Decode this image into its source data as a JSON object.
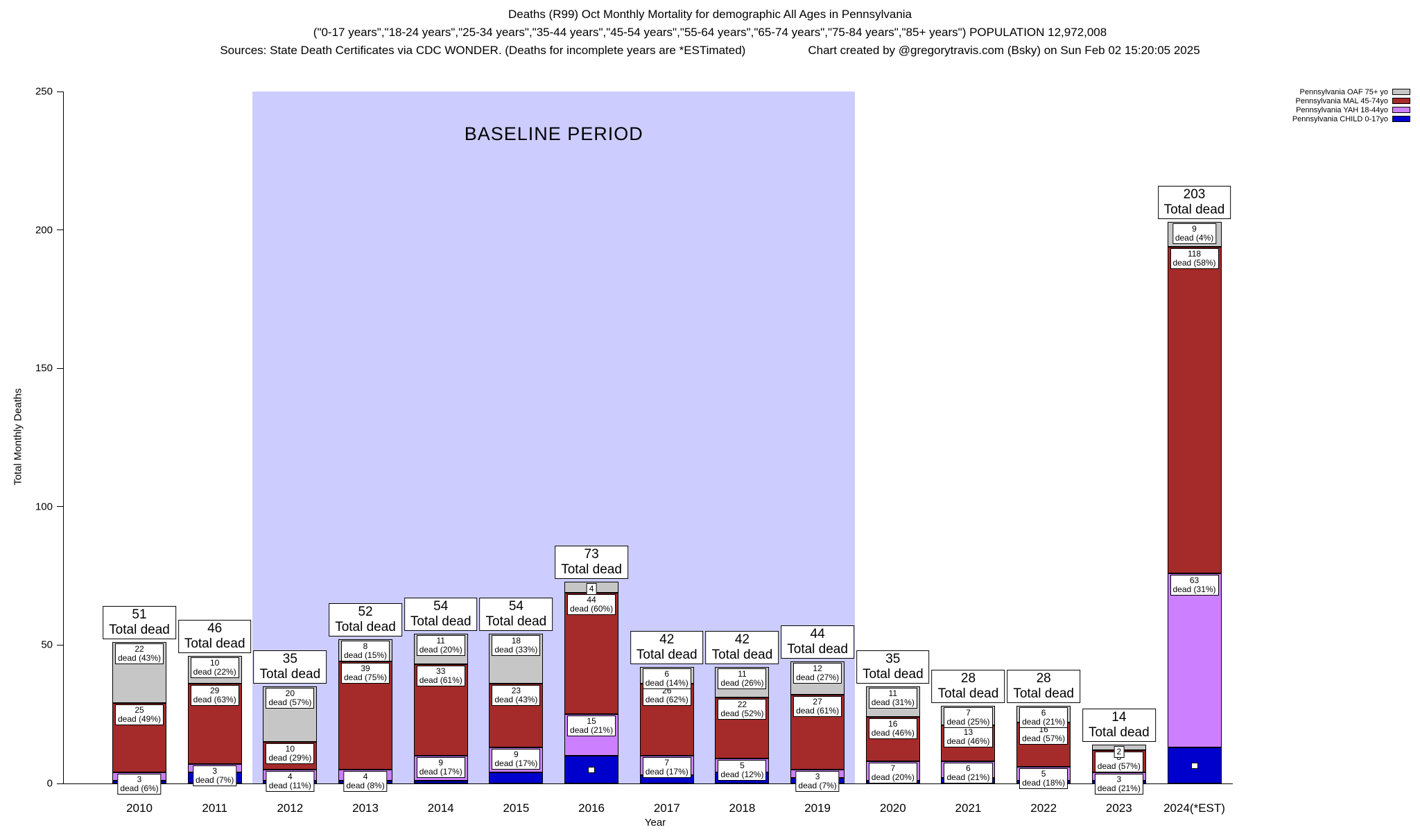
{
  "header": {
    "line1": "Deaths (R99) Oct Monthly Mortality for demographic All Ages in Pennsylvania",
    "line2": "(\"0-17 years\",\"18-24 years\",\"25-34 years\",\"35-44 years\",\"45-54 years\",\"55-64 years\",\"65-74 years\",\"75-84 years\",\"85+ years\") POPULATION 12,972,008",
    "line3_left": "Sources: State Death Certificates via CDC WONDER. (Deaths for incomplete years are *ESTimated)",
    "line3_right": "Chart created by @gregorytravis.com (Bsky) on Sun Feb 02 15:20:05 2025"
  },
  "legend": [
    {
      "label": "Pennsylvania OAF 75+ yo",
      "color": "#c6c6c6"
    },
    {
      "label": "Pennsylvania MAL 45-74yo",
      "color": "#a52a2a"
    },
    {
      "label": "Pennsylvania YAH 18-44yo",
      "color": "#cc80ff"
    },
    {
      "label": "Pennsylvania CHILD 0-17yo",
      "color": "#0000cd"
    }
  ],
  "axes": {
    "y_label": "Total Monthly Deaths",
    "x_label": "Year",
    "y_ticks": [
      0,
      50,
      100,
      150,
      200,
      250
    ],
    "y_max": 250
  },
  "baseline": {
    "label": "BASELINE PERIOD",
    "from": "2012",
    "to": "2019",
    "color": "#ccccff"
  },
  "chart_data": {
    "type": "bar",
    "stacked": true,
    "title": "Deaths (R99) Oct Monthly Mortality for demographic All Ages in Pennsylvania",
    "xlabel": "Year",
    "ylabel": "Total Monthly Deaths",
    "ylim": [
      0,
      250
    ],
    "grid": false,
    "legend_position": "top-right",
    "categories": [
      "2010",
      "2011",
      "2012",
      "2013",
      "2014",
      "2015",
      "2016",
      "2017",
      "2018",
      "2019",
      "2020",
      "2021",
      "2022",
      "2023",
      "2024(*EST)"
    ],
    "totals": [
      51,
      46,
      35,
      52,
      54,
      54,
      73,
      42,
      42,
      44,
      35,
      28,
      28,
      14,
      203
    ],
    "total_label_suffix": "Total dead",
    "dead_label_format": "dead ({pct})",
    "series": [
      {
        "key": "child",
        "name": "Pennsylvania CHILD 0-17yo",
        "color": "#0000cd",
        "values": [
          1,
          4,
          1,
          1,
          1,
          4,
          10,
          3,
          4,
          2,
          1,
          2,
          1,
          1,
          13
        ],
        "pcts": [
          null,
          null,
          null,
          null,
          null,
          null,
          null,
          null,
          null,
          null,
          null,
          null,
          null,
          null,
          null
        ]
      },
      {
        "key": "yah",
        "name": "Pennsylvania YAH 18-44yo",
        "color": "#cc80ff",
        "values": [
          3,
          3,
          4,
          4,
          9,
          9,
          15,
          7,
          5,
          3,
          7,
          6,
          5,
          3,
          63
        ],
        "pcts": [
          "6%",
          "7%",
          "11%",
          "8%",
          "17%",
          "17%",
          "21%",
          "17%",
          "12%",
          "7%",
          "20%",
          "21%",
          "18%",
          "21%",
          "31%"
        ]
      },
      {
        "key": "mal",
        "name": "Pennsylvania MAL 45-74yo",
        "color": "#a52a2a",
        "values": [
          25,
          29,
          10,
          39,
          33,
          23,
          44,
          26,
          22,
          27,
          16,
          13,
          16,
          8,
          118
        ],
        "pcts": [
          "49%",
          "63%",
          "29%",
          "75%",
          "61%",
          "43%",
          "60%",
          "62%",
          "52%",
          "61%",
          "46%",
          "46%",
          "57%",
          "57%",
          "58%"
        ]
      },
      {
        "key": "oaf",
        "name": "Pennsylvania OAF 75+ yo",
        "color": "#c6c6c6",
        "values": [
          22,
          10,
          20,
          8,
          11,
          18,
          4,
          6,
          11,
          12,
          11,
          7,
          6,
          2,
          9
        ],
        "pcts": [
          "43%",
          "22%",
          "57%",
          "15%",
          "20%",
          "33%",
          null,
          "14%",
          "26%",
          "27%",
          "31%",
          "25%",
          "21%",
          null,
          "4%"
        ]
      }
    ]
  }
}
